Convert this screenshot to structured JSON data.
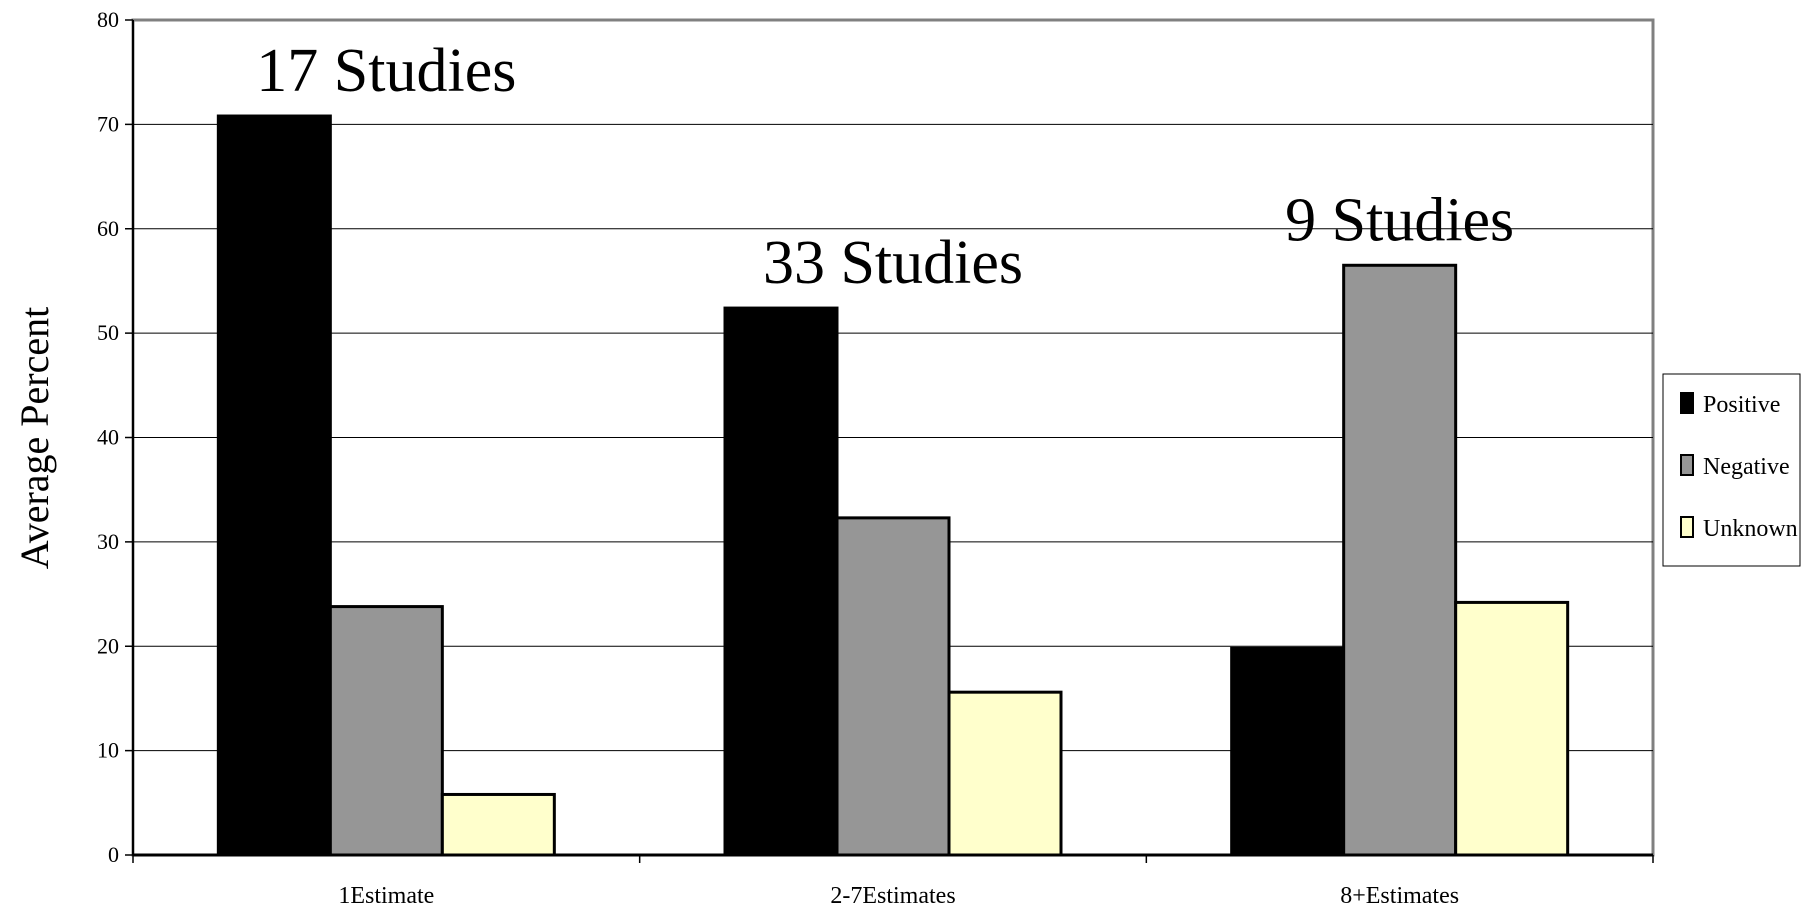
{
  "chart_data": {
    "type": "bar",
    "ylabel": "Average Percent",
    "xlabel": "",
    "ylim": [
      0,
      80
    ],
    "yticks": [
      0,
      10,
      20,
      30,
      40,
      50,
      60,
      70,
      80
    ],
    "grid": "horizontal",
    "legend_position": "right",
    "categories": [
      "1Estimate",
      "2-7Estimates",
      "8+Estimates"
    ],
    "series": [
      {
        "name": "Positive",
        "color": "#000000",
        "values": [
          70.8,
          52.4,
          19.8
        ]
      },
      {
        "name": "Negative",
        "color": "#969696",
        "values": [
          23.8,
          32.3,
          56.5
        ]
      },
      {
        "name": "Unknown",
        "color": "#FFFFCC",
        "values": [
          5.8,
          15.6,
          24.2
        ]
      }
    ],
    "annotations": [
      "17 Studies",
      "33 Studies",
      "9 Studies"
    ]
  }
}
